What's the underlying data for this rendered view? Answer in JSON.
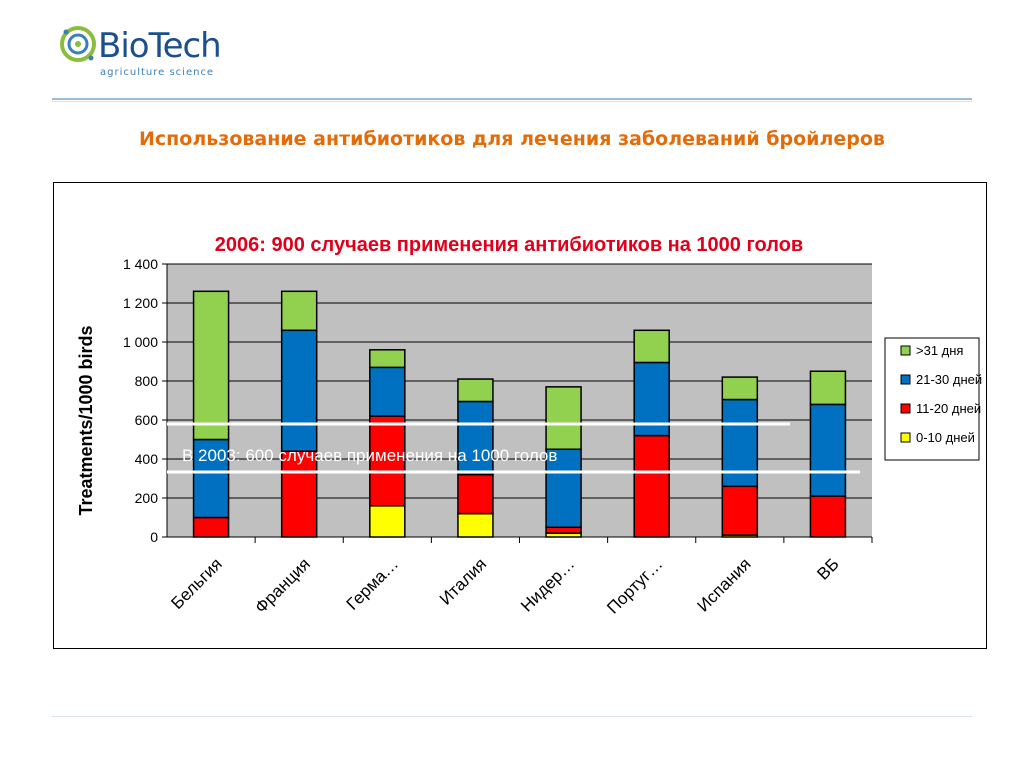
{
  "logo": {
    "brand": "BioTech",
    "tagline": "agriculture science"
  },
  "slide_title": "Использование антибиотиков для лечения заболеваний бройлеров",
  "colors": {
    "title": "#e36c0a",
    "chart_title": "#e0001b",
    "plot_bg": "#c0c0c0",
    "s_31": "#92d050",
    "s_21_30": "#0070c0",
    "s_11_20": "#ff0000",
    "s_0_10": "#ffff00"
  },
  "chart_data": {
    "type": "bar",
    "stacked": true,
    "title": "2006: 900 случаев применения антибиотиков на  1000 голов",
    "ylabel": "Treatments/1000 birds",
    "xlabel": "",
    "ylim": [
      0,
      1400
    ],
    "yticks": [
      "0",
      "200",
      "400",
      "600",
      "800",
      "1 000",
      "1 200",
      "1 400"
    ],
    "categories": [
      "Бельгия",
      "Франция",
      "Герма…",
      "Италия",
      "Нидер…",
      "Португ…",
      "Испания",
      "ВБ"
    ],
    "series": [
      {
        "name": "0-10 дней",
        "color": "#ffff00",
        "values": [
          0,
          0,
          160,
          120,
          20,
          0,
          10,
          0
        ]
      },
      {
        "name": "11-20 дней",
        "color": "#ff0000",
        "values": [
          100,
          440,
          460,
          200,
          30,
          520,
          250,
          210
        ]
      },
      {
        "name": "21-30 дней",
        "color": "#0070c0",
        "values": [
          400,
          620,
          250,
          375,
          400,
          375,
          445,
          470
        ]
      },
      {
        "name": ">31 дня",
        "color": "#92d050",
        "values": [
          760,
          200,
          90,
          115,
          320,
          165,
          115,
          170
        ]
      }
    ],
    "legend": ">31 дня, 21-30 дней, 11-20 дней, 0-10 дней",
    "legend_position": "right",
    "grid": true,
    "annotation": "В  2003: 600 случаев применения на 1000  голов"
  }
}
